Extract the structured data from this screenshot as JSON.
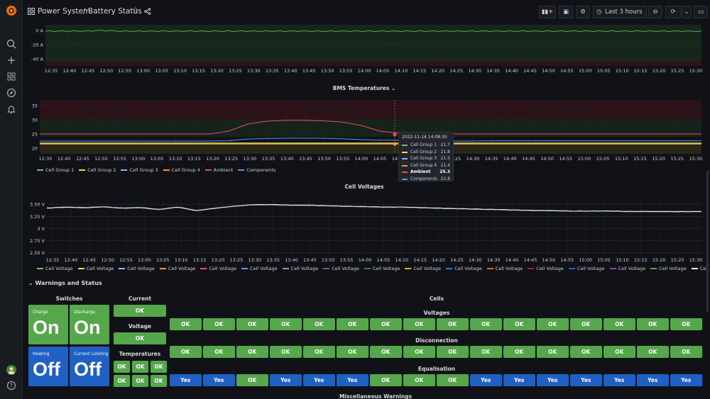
{
  "header": {
    "breadcrumb_folder": "Power System",
    "separator": "/",
    "dashboard_title": "Battery Status",
    "time_range": "Last 3 hours"
  },
  "colors": {
    "green": "#56a64b",
    "blue": "#1f60c4",
    "cg1": "#73bf69",
    "cg2": "#fade2a",
    "cg3": "#8ab8ff",
    "cg4": "#ff9830",
    "ambient": "#f2495c",
    "components": "#5794f2"
  },
  "time_ticks": [
    "12:35",
    "12:40",
    "12:45",
    "12:50",
    "12:55",
    "13:00",
    "13:05",
    "13:10",
    "13:15",
    "13:20",
    "13:25",
    "13:30",
    "13:35",
    "13:40",
    "13:45",
    "13:50",
    "13:55",
    "14:00",
    "14:05",
    "14:10",
    "14:15",
    "14:20",
    "14:25",
    "14:30",
    "14:35",
    "14:40",
    "14:45",
    "14:50",
    "14:55",
    "15:00",
    "15:05",
    "15:10",
    "15:15",
    "15:20",
    "15:25",
    "15:30"
  ],
  "chart_data": [
    {
      "type": "line",
      "title": "",
      "y_ticks": [
        "0 A",
        "-20 A",
        "-40 A"
      ],
      "ylim": [
        -50,
        8
      ],
      "series": [
        {
          "name": "",
          "values": [
            -1,
            -1,
            -1,
            0,
            -1,
            -1,
            -1,
            -1,
            -1,
            -1,
            -1,
            -1,
            -1,
            -1,
            -1,
            -1,
            -1,
            -1,
            -1,
            -1,
            -1,
            -1,
            -1,
            -1,
            -1,
            -1,
            -1,
            -1,
            -1,
            -1,
            -1,
            -1,
            -1,
            -1,
            -1,
            -1
          ]
        }
      ]
    },
    {
      "type": "line",
      "title": "BMS Temperatures",
      "y_ticks": [
        "35",
        "30",
        "25",
        "20"
      ],
      "ylim": [
        18,
        37
      ],
      "series": [
        {
          "name": "Cell Group 1",
          "values": [
            21.7,
            21.7,
            21.7,
            21.7,
            21.7,
            21.7,
            21.7,
            21.7,
            21.7,
            21.7,
            21.7,
            21.7,
            21.7,
            21.7,
            21.7,
            21.7,
            21.7,
            21.7,
            21.7,
            21.7,
            21.7,
            21.7,
            21.7,
            21.7,
            21.7,
            21.7,
            21.7,
            21.7,
            21.7,
            21.7,
            21.7,
            21.7,
            21.7,
            21.7,
            21.7,
            21.7
          ]
        },
        {
          "name": "Cell Group 2",
          "values": [
            21.8,
            21.8,
            21.8,
            21.8,
            21.8,
            21.8,
            21.8,
            21.8,
            21.8,
            21.8,
            21.8,
            21.8,
            21.8,
            21.8,
            21.8,
            21.8,
            21.8,
            21.8,
            21.8,
            21.8,
            21.8,
            21.8,
            21.8,
            21.8,
            21.8,
            21.8,
            21.8,
            21.8,
            21.8,
            21.8,
            21.8,
            21.8,
            21.8,
            21.8,
            21.8,
            21.8
          ]
        },
        {
          "name": "Cell Group 3",
          "values": [
            21.5,
            21.5,
            21.5,
            21.5,
            21.5,
            21.5,
            21.5,
            21.5,
            21.5,
            21.5,
            21.5,
            21.5,
            21.5,
            21.5,
            21.5,
            21.5,
            21.5,
            21.5,
            21.5,
            21.5,
            21.5,
            21.5,
            21.5,
            21.5,
            21.5,
            21.5,
            21.5,
            21.5,
            21.5,
            21.5,
            21.5,
            21.5,
            21.5,
            21.5,
            21.5,
            21.5
          ]
        },
        {
          "name": "Cell Group 4",
          "values": [
            21.4,
            21.4,
            21.4,
            21.4,
            21.4,
            21.4,
            21.4,
            21.4,
            21.4,
            21.4,
            21.4,
            21.4,
            21.4,
            21.4,
            21.4,
            21.4,
            21.4,
            21.4,
            21.4,
            21.4,
            21.4,
            21.4,
            21.4,
            21.4,
            21.4,
            21.4,
            21.4,
            21.4,
            21.4,
            21.4,
            21.4,
            21.4,
            21.4,
            21.4,
            21.4,
            21.4
          ]
        },
        {
          "name": "Ambient",
          "values": [
            25,
            25,
            25,
            25,
            25,
            25,
            25,
            25,
            25,
            25,
            26,
            28.5,
            29.5,
            29.8,
            29.8,
            29.6,
            29.2,
            28,
            26,
            25.3,
            25,
            25,
            25,
            25,
            25,
            25,
            25,
            25,
            25,
            25,
            25,
            25,
            25,
            25,
            25,
            25
          ]
        },
        {
          "name": "Components",
          "values": [
            22.5,
            22.5,
            22.5,
            22.5,
            22.5,
            22.5,
            22.5,
            22.5,
            22.5,
            22.5,
            22.6,
            23.2,
            23.4,
            23.5,
            23.5,
            23.5,
            23.3,
            23,
            22.8,
            22.8,
            22.6,
            22.6,
            22.5,
            22.5,
            22.6,
            22.6,
            22.6,
            22.6,
            22.6,
            22.6,
            22.6,
            22.6,
            22.6,
            22.6,
            22.6,
            22.6
          ]
        }
      ]
    },
    {
      "type": "line",
      "title": "Cell Voltages",
      "y_ticks": [
        "3.50 V",
        "3.25 V",
        "3 V",
        "2.75 V",
        "2.50 V"
      ],
      "ylim": [
        2.45,
        3.62
      ],
      "series": [
        {
          "name": "Cell Voltage",
          "values": [
            3.42,
            3.44,
            3.43,
            3.45,
            3.42,
            3.43,
            3.39,
            3.44,
            3.37,
            3.42,
            3.46,
            3.49,
            3.49,
            3.48,
            3.48,
            3.47,
            3.46,
            3.45,
            3.44,
            3.44,
            3.43,
            3.42,
            3.41,
            3.4,
            3.39,
            3.38,
            3.37,
            3.37,
            3.36,
            3.36,
            3.36,
            3.35,
            3.35,
            3.35,
            3.35,
            3.35
          ]
        }
      ]
    }
  ],
  "temps_tooltip": {
    "time": "2022-11-14 14:08:30",
    "rows": [
      {
        "name": "Cell Group 1",
        "value": "21.7",
        "color": "#73bf69"
      },
      {
        "name": "Cell Group 2",
        "value": "21.8",
        "color": "#fade2a"
      },
      {
        "name": "Cell Group 3",
        "value": "21.5",
        "color": "#8ab8ff"
      },
      {
        "name": "Cell Group 4",
        "value": "21.4",
        "color": "#ff9830"
      },
      {
        "name": "Ambient",
        "value": "25.3",
        "color": "#f2495c"
      },
      {
        "name": "Components",
        "value": "22.8",
        "color": "#5794f2"
      }
    ]
  },
  "temps_legend": [
    {
      "name": "Cell Group 1",
      "color": "#73bf69"
    },
    {
      "name": "Cell Group 2",
      "color": "#fade2a"
    },
    {
      "name": "Cell Group 3",
      "color": "#8ab8ff"
    },
    {
      "name": "Cell Group 4",
      "color": "#ff9830"
    },
    {
      "name": "Ambient",
      "color": "#f2495c"
    },
    {
      "name": "Components",
      "color": "#5794f2"
    }
  ],
  "voltage_legend_label": "Cell Voltage",
  "voltage_legend_colors": [
    "#73bf69",
    "#fade2a",
    "#8ab8ff",
    "#ff9830",
    "#f2495c",
    "#5794f2",
    "#b877d9",
    "#705da0",
    "#37872d",
    "#e0b400",
    "#3274d9",
    "#fa6400",
    "#c4162a",
    "#1f60c4",
    "#8f3bb8",
    "#56a64b",
    "#ffffff"
  ],
  "warnings": {
    "row_title": "Warnings and Status",
    "switches_title": "Switches",
    "switches": [
      {
        "label": "Charge",
        "value": "On",
        "color": "#56a64b"
      },
      {
        "label": "Discharge",
        "value": "On",
        "color": "#56a64b"
      },
      {
        "label": "Heating",
        "value": "Off",
        "color": "#1f60c4"
      },
      {
        "label": "Current Limiting",
        "value": "Off",
        "color": "#1f60c4"
      }
    ],
    "current_title": "Current",
    "current_value": "OK",
    "voltage_title": "Voltage",
    "voltage_value": "OK",
    "temps_title": "Temperatures",
    "temps_values": [
      "OK",
      "OK",
      "OK",
      "OK",
      "OK",
      "OK"
    ],
    "cells_title": "Cells",
    "voltages_title": "Voltages",
    "voltages": [
      "OK",
      "OK",
      "OK",
      "OK",
      "OK",
      "OK",
      "OK",
      "OK",
      "OK",
      "OK",
      "OK",
      "OK",
      "OK",
      "OK",
      "OK",
      "OK"
    ],
    "disconnection_title": "Disconnection",
    "disconnection": [
      "OK",
      "OK",
      "OK",
      "OK",
      "OK",
      "OK",
      "OK",
      "OK",
      "OK",
      "OK",
      "OK",
      "OK",
      "OK",
      "OK",
      "OK",
      "OK"
    ],
    "equalisation_title": "Equalisation",
    "equalisation": [
      "Yes",
      "Yes",
      "OK",
      "Yes",
      "Yes",
      "Yes",
      "OK",
      "OK",
      "OK",
      "Yes",
      "Yes",
      "Yes",
      "Yes",
      "Yes",
      "Yes",
      "Yes"
    ],
    "misc_title": "Miscellaneous Warnings"
  }
}
